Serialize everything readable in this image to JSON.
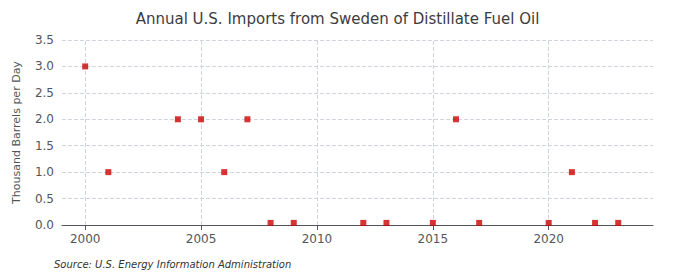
{
  "chart_data": {
    "type": "scatter",
    "title": "Annual U.S. Imports from Sweden of Distillate Fuel Oil",
    "ylabel": "Thousand Barrels per Day",
    "source": "Source: U.S. Energy Information Administration",
    "x": [
      2000,
      2001,
      2004,
      2005,
      2006,
      2007,
      2008,
      2009,
      2012,
      2013,
      2015,
      2016,
      2017,
      2020,
      2021,
      2022,
      2023
    ],
    "values": [
      3.0,
      1.0,
      2.0,
      2.0,
      1.0,
      2.0,
      0.04,
      0.04,
      0.04,
      0.04,
      0.04,
      2.0,
      0.04,
      0.04,
      1.0,
      0.04,
      0.04
    ],
    "color": "#cc0000",
    "marker": "square",
    "xlim": [
      1999,
      2024.5
    ],
    "xticks": [
      2000,
      2005,
      2010,
      2015,
      2020
    ],
    "ylim": [
      0.0,
      3.5
    ],
    "yticks": [
      {
        "value": 0.0,
        "label": "0.0"
      },
      0.5,
      {
        "value": 1.0,
        "label": "1.0"
      },
      1.5,
      {
        "value": 2.0,
        "label": "2.0"
      },
      2.5,
      {
        "value": 3.0,
        "label": "3.0"
      },
      3.5
    ],
    "grid": true
  }
}
